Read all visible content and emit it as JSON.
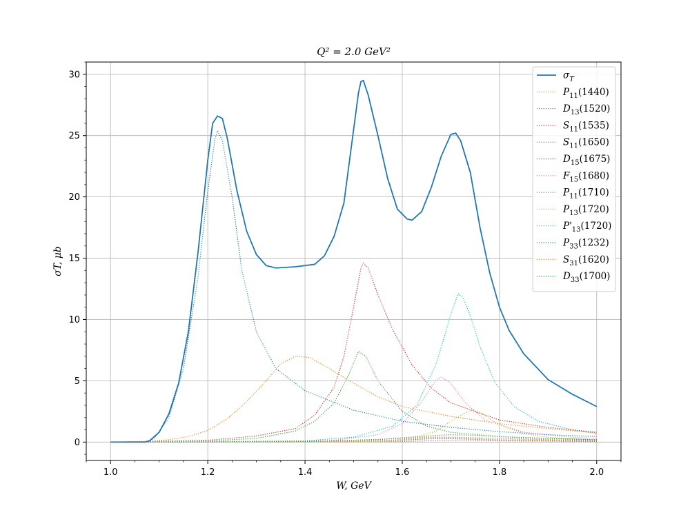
{
  "chart_data": {
    "type": "line",
    "title": "Q² = 2.0 GeV²",
    "xlabel": "W, GeV",
    "ylabel": "σT, μb",
    "xlim": [
      0.95,
      2.05
    ],
    "ylim": [
      -1.5,
      31
    ],
    "x_ticks": [
      "1.0",
      "1.2",
      "1.4",
      "1.6",
      "1.8",
      "2.0"
    ],
    "y_ticks": [
      "0",
      "5",
      "10",
      "15",
      "20",
      "25",
      "30"
    ],
    "grid": true,
    "legend_position": "top-right",
    "series": [
      {
        "name": "σT",
        "style": "solid",
        "color": "#1f77b4",
        "points": [
          [
            1.0,
            0
          ],
          [
            1.07,
            0
          ],
          [
            1.08,
            0.1
          ],
          [
            1.1,
            0.8
          ],
          [
            1.12,
            2.3
          ],
          [
            1.14,
            4.8
          ],
          [
            1.16,
            9
          ],
          [
            1.18,
            15.5
          ],
          [
            1.2,
            23
          ],
          [
            1.21,
            26
          ],
          [
            1.22,
            26.6
          ],
          [
            1.23,
            26.4
          ],
          [
            1.24,
            24.8
          ],
          [
            1.26,
            20.5
          ],
          [
            1.28,
            17.2
          ],
          [
            1.3,
            15.3
          ],
          [
            1.32,
            14.4
          ],
          [
            1.34,
            14.2
          ],
          [
            1.38,
            14.3
          ],
          [
            1.42,
            14.5
          ],
          [
            1.44,
            15.2
          ],
          [
            1.46,
            16.8
          ],
          [
            1.48,
            19.5
          ],
          [
            1.5,
            25.5
          ],
          [
            1.51,
            28.5
          ],
          [
            1.515,
            29.4
          ],
          [
            1.52,
            29.5
          ],
          [
            1.53,
            28.3
          ],
          [
            1.55,
            25
          ],
          [
            1.57,
            21.5
          ],
          [
            1.59,
            19
          ],
          [
            1.61,
            18.2
          ],
          [
            1.62,
            18.1
          ],
          [
            1.64,
            18.8
          ],
          [
            1.66,
            20.8
          ],
          [
            1.68,
            23.3
          ],
          [
            1.7,
            25.1
          ],
          [
            1.71,
            25.2
          ],
          [
            1.72,
            24.6
          ],
          [
            1.74,
            22
          ],
          [
            1.76,
            17.5
          ],
          [
            1.78,
            13.8
          ],
          [
            1.8,
            11
          ],
          [
            1.82,
            9.1
          ],
          [
            1.85,
            7.2
          ],
          [
            1.9,
            5.1
          ],
          [
            1.95,
            3.9
          ],
          [
            2.0,
            2.9
          ]
        ]
      },
      {
        "name": "P11(1440)",
        "style": "dotted",
        "color": "#ff7f0e",
        "points": [
          [
            1.0,
            0
          ],
          [
            1.08,
            0.05
          ],
          [
            1.12,
            0.2
          ],
          [
            1.16,
            0.45
          ],
          [
            1.2,
            0.95
          ],
          [
            1.24,
            1.9
          ],
          [
            1.28,
            3.3
          ],
          [
            1.32,
            5
          ],
          [
            1.35,
            6.4
          ],
          [
            1.38,
            7
          ],
          [
            1.41,
            6.9
          ],
          [
            1.45,
            6
          ],
          [
            1.5,
            4.8
          ],
          [
            1.55,
            3.7
          ],
          [
            1.6,
            2.9
          ],
          [
            1.7,
            2.1
          ],
          [
            1.8,
            1.5
          ],
          [
            1.9,
            1.1
          ],
          [
            2.0,
            0.75
          ]
        ]
      },
      {
        "name": "D13(1520)",
        "style": "dotted",
        "color": "#2ca02c",
        "points": [
          [
            1.0,
            0
          ],
          [
            1.2,
            0.1
          ],
          [
            1.3,
            0.3
          ],
          [
            1.38,
            0.9
          ],
          [
            1.42,
            1.7
          ],
          [
            1.46,
            3.2
          ],
          [
            1.49,
            5.5
          ],
          [
            1.51,
            7.4
          ],
          [
            1.525,
            7
          ],
          [
            1.55,
            5
          ],
          [
            1.6,
            2.5
          ],
          [
            1.65,
            1.3
          ],
          [
            1.7,
            0.8
          ],
          [
            1.8,
            0.45
          ],
          [
            1.9,
            0.3
          ],
          [
            2.0,
            0.2
          ]
        ]
      },
      {
        "name": "S11(1535)",
        "style": "dotted",
        "color": "#d62728",
        "points": [
          [
            1.0,
            0
          ],
          [
            1.2,
            0.15
          ],
          [
            1.3,
            0.5
          ],
          [
            1.38,
            1.1
          ],
          [
            1.42,
            2.2
          ],
          [
            1.46,
            4.5
          ],
          [
            1.48,
            7
          ],
          [
            1.5,
            11
          ],
          [
            1.515,
            14.2
          ],
          [
            1.52,
            14.6
          ],
          [
            1.53,
            14.2
          ],
          [
            1.55,
            12
          ],
          [
            1.58,
            9.2
          ],
          [
            1.62,
            6.3
          ],
          [
            1.66,
            4.4
          ],
          [
            1.7,
            3.2
          ],
          [
            1.8,
            1.8
          ],
          [
            1.9,
            1.2
          ],
          [
            2.0,
            0.8
          ]
        ]
      },
      {
        "name": "S11(1650)",
        "style": "dotted",
        "color": "#9467bd",
        "points": [
          [
            1.0,
            0
          ],
          [
            1.4,
            0.05
          ],
          [
            1.5,
            0.15
          ],
          [
            1.6,
            0.3
          ],
          [
            1.65,
            0.4
          ],
          [
            1.7,
            0.4
          ],
          [
            1.8,
            0.3
          ],
          [
            1.9,
            0.2
          ],
          [
            2.0,
            0.15
          ]
        ]
      },
      {
        "name": "D15(1675)",
        "style": "dotted",
        "color": "#8c564b",
        "points": [
          [
            1.0,
            0
          ],
          [
            1.5,
            0.05
          ],
          [
            1.6,
            0.15
          ],
          [
            1.67,
            0.3
          ],
          [
            1.7,
            0.28
          ],
          [
            1.8,
            0.15
          ],
          [
            2.0,
            0.05
          ]
        ]
      },
      {
        "name": "F15(1680)",
        "style": "dotted",
        "color": "#e377c2",
        "points": [
          [
            1.0,
            0
          ],
          [
            1.45,
            0.1
          ],
          [
            1.55,
            0.6
          ],
          [
            1.6,
            1.5
          ],
          [
            1.64,
            3.3
          ],
          [
            1.67,
            5.1
          ],
          [
            1.68,
            5.3
          ],
          [
            1.7,
            4.8
          ],
          [
            1.73,
            3.2
          ],
          [
            1.77,
            1.8
          ],
          [
            1.85,
            0.8
          ],
          [
            1.95,
            0.4
          ],
          [
            2.0,
            0.3
          ]
        ]
      },
      {
        "name": "P11(1710)",
        "style": "dotted",
        "color": "#7f7f7f",
        "points": [
          [
            1.0,
            0
          ],
          [
            1.6,
            0.05
          ],
          [
            1.7,
            0.15
          ],
          [
            1.8,
            0.1
          ],
          [
            2.0,
            0.05
          ]
        ]
      },
      {
        "name": "P13(1720)",
        "style": "dotted",
        "color": "#bcbd22",
        "points": [
          [
            1.0,
            0
          ],
          [
            1.55,
            0.05
          ],
          [
            1.62,
            0.3
          ],
          [
            1.67,
            0.9
          ],
          [
            1.7,
            1.7
          ],
          [
            1.73,
            2.4
          ],
          [
            1.745,
            2.6
          ],
          [
            1.76,
            2.4
          ],
          [
            1.8,
            1.4
          ],
          [
            1.85,
            0.7
          ],
          [
            1.9,
            0.4
          ],
          [
            2.0,
            0.15
          ]
        ]
      },
      {
        "name": "P'13(1720)",
        "style": "dotted",
        "color": "#17becf",
        "points": [
          [
            1.0,
            0
          ],
          [
            1.4,
            0.1
          ],
          [
            1.5,
            0.4
          ],
          [
            1.58,
            1.3
          ],
          [
            1.63,
            3
          ],
          [
            1.67,
            6.4
          ],
          [
            1.7,
            10.4
          ],
          [
            1.715,
            12.1
          ],
          [
            1.725,
            11.8
          ],
          [
            1.74,
            10.3
          ],
          [
            1.76,
            7.8
          ],
          [
            1.79,
            4.9
          ],
          [
            1.83,
            2.9
          ],
          [
            1.88,
            1.7
          ],
          [
            1.95,
            1
          ],
          [
            2.0,
            0.7
          ]
        ]
      },
      {
        "name": "P33(1232)",
        "style": "dotted",
        "color": "#1f77b4",
        "points": [
          [
            1.0,
            0
          ],
          [
            1.07,
            0
          ],
          [
            1.09,
            0.3
          ],
          [
            1.12,
            2
          ],
          [
            1.15,
            6
          ],
          [
            1.18,
            13.5
          ],
          [
            1.2,
            20.5
          ],
          [
            1.215,
            24.8
          ],
          [
            1.22,
            25.4
          ],
          [
            1.23,
            24.6
          ],
          [
            1.25,
            20
          ],
          [
            1.27,
            14
          ],
          [
            1.3,
            9
          ],
          [
            1.34,
            6
          ],
          [
            1.4,
            4.2
          ],
          [
            1.5,
            2.6
          ],
          [
            1.6,
            1.7
          ],
          [
            1.7,
            1.2
          ],
          [
            1.8,
            0.85
          ],
          [
            1.9,
            0.6
          ],
          [
            2.0,
            0.45
          ]
        ]
      },
      {
        "name": "S31(1620)",
        "style": "dotted",
        "color": "#ff7f0e",
        "points": [
          [
            1.0,
            0
          ],
          [
            1.5,
            0.05
          ],
          [
            1.6,
            0.2
          ],
          [
            1.65,
            0.35
          ],
          [
            1.7,
            0.35
          ],
          [
            1.8,
            0.2
          ],
          [
            2.0,
            0.1
          ]
        ]
      },
      {
        "name": "D33(1700)",
        "style": "dotted",
        "color": "#2ca02c",
        "points": [
          [
            1.0,
            0
          ],
          [
            1.4,
            0.05
          ],
          [
            1.55,
            0.2
          ],
          [
            1.65,
            0.5
          ],
          [
            1.7,
            0.6
          ],
          [
            1.75,
            0.55
          ],
          [
            1.85,
            0.35
          ],
          [
            2.0,
            0.2
          ]
        ]
      }
    ]
  }
}
